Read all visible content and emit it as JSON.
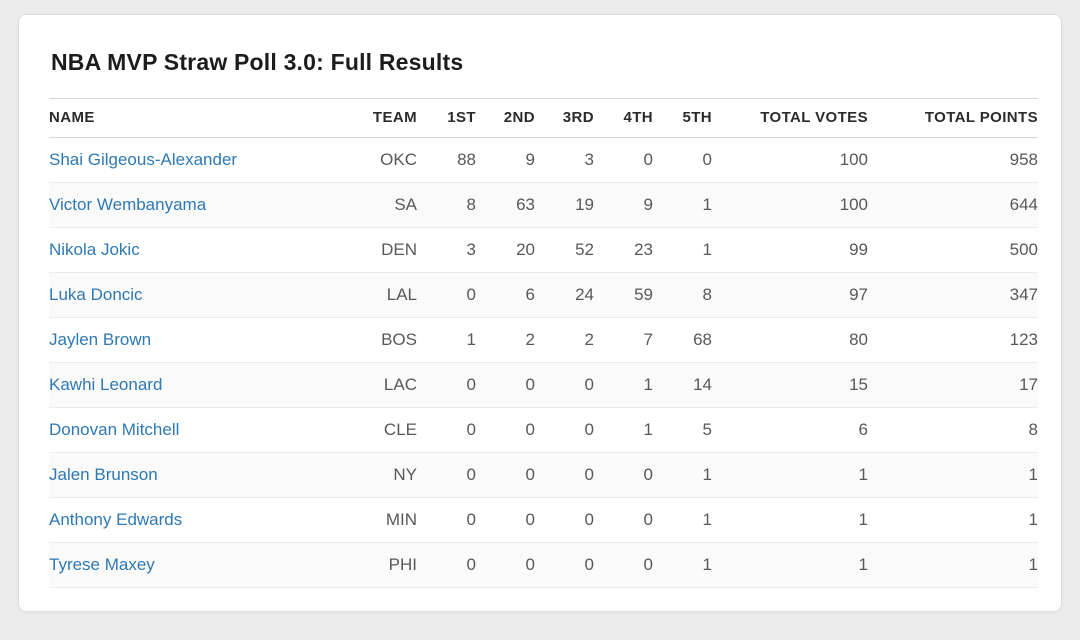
{
  "page": {
    "title": "NBA MVP Straw Poll 3.0: Full Results"
  },
  "colors": {
    "page_background": "#ebebeb",
    "card_background": "#ffffff",
    "link_blue": "#2e79b5",
    "header_text": "#2b2b2d",
    "cell_text": "#58585a",
    "zebra_stripe": "#fafafa"
  },
  "table": {
    "columns": [
      "NAME",
      "TEAM",
      "1ST",
      "2ND",
      "3RD",
      "4TH",
      "5TH",
      "TOTAL VOTES",
      "TOTAL POINTS"
    ],
    "rows": [
      {
        "name": "Shai Gilgeous-Alexander",
        "team": "OKC",
        "first": "88",
        "second": "9",
        "third": "3",
        "fourth": "0",
        "fifth": "0",
        "total_votes": "100",
        "total_points": "958"
      },
      {
        "name": "Victor Wembanyama",
        "team": "SA",
        "first": "8",
        "second": "63",
        "third": "19",
        "fourth": "9",
        "fifth": "1",
        "total_votes": "100",
        "total_points": "644"
      },
      {
        "name": "Nikola Jokic",
        "team": "DEN",
        "first": "3",
        "second": "20",
        "third": "52",
        "fourth": "23",
        "fifth": "1",
        "total_votes": "99",
        "total_points": "500"
      },
      {
        "name": "Luka Doncic",
        "team": "LAL",
        "first": "0",
        "second": "6",
        "third": "24",
        "fourth": "59",
        "fifth": "8",
        "total_votes": "97",
        "total_points": "347"
      },
      {
        "name": "Jaylen Brown",
        "team": "BOS",
        "first": "1",
        "second": "2",
        "third": "2",
        "fourth": "7",
        "fifth": "68",
        "total_votes": "80",
        "total_points": "123"
      },
      {
        "name": "Kawhi Leonard",
        "team": "LAC",
        "first": "0",
        "second": "0",
        "third": "0",
        "fourth": "1",
        "fifth": "14",
        "total_votes": "15",
        "total_points": "17"
      },
      {
        "name": "Donovan Mitchell",
        "team": "CLE",
        "first": "0",
        "second": "0",
        "third": "0",
        "fourth": "1",
        "fifth": "5",
        "total_votes": "6",
        "total_points": "8"
      },
      {
        "name": "Jalen Brunson",
        "team": "NY",
        "first": "0",
        "second": "0",
        "third": "0",
        "fourth": "0",
        "fifth": "1",
        "total_votes": "1",
        "total_points": "1"
      },
      {
        "name": "Anthony Edwards",
        "team": "MIN",
        "first": "0",
        "second": "0",
        "third": "0",
        "fourth": "0",
        "fifth": "1",
        "total_votes": "1",
        "total_points": "1"
      },
      {
        "name": "Tyrese Maxey",
        "team": "PHI",
        "first": "0",
        "second": "0",
        "third": "0",
        "fourth": "0",
        "fifth": "1",
        "total_votes": "1",
        "total_points": "1"
      }
    ]
  }
}
